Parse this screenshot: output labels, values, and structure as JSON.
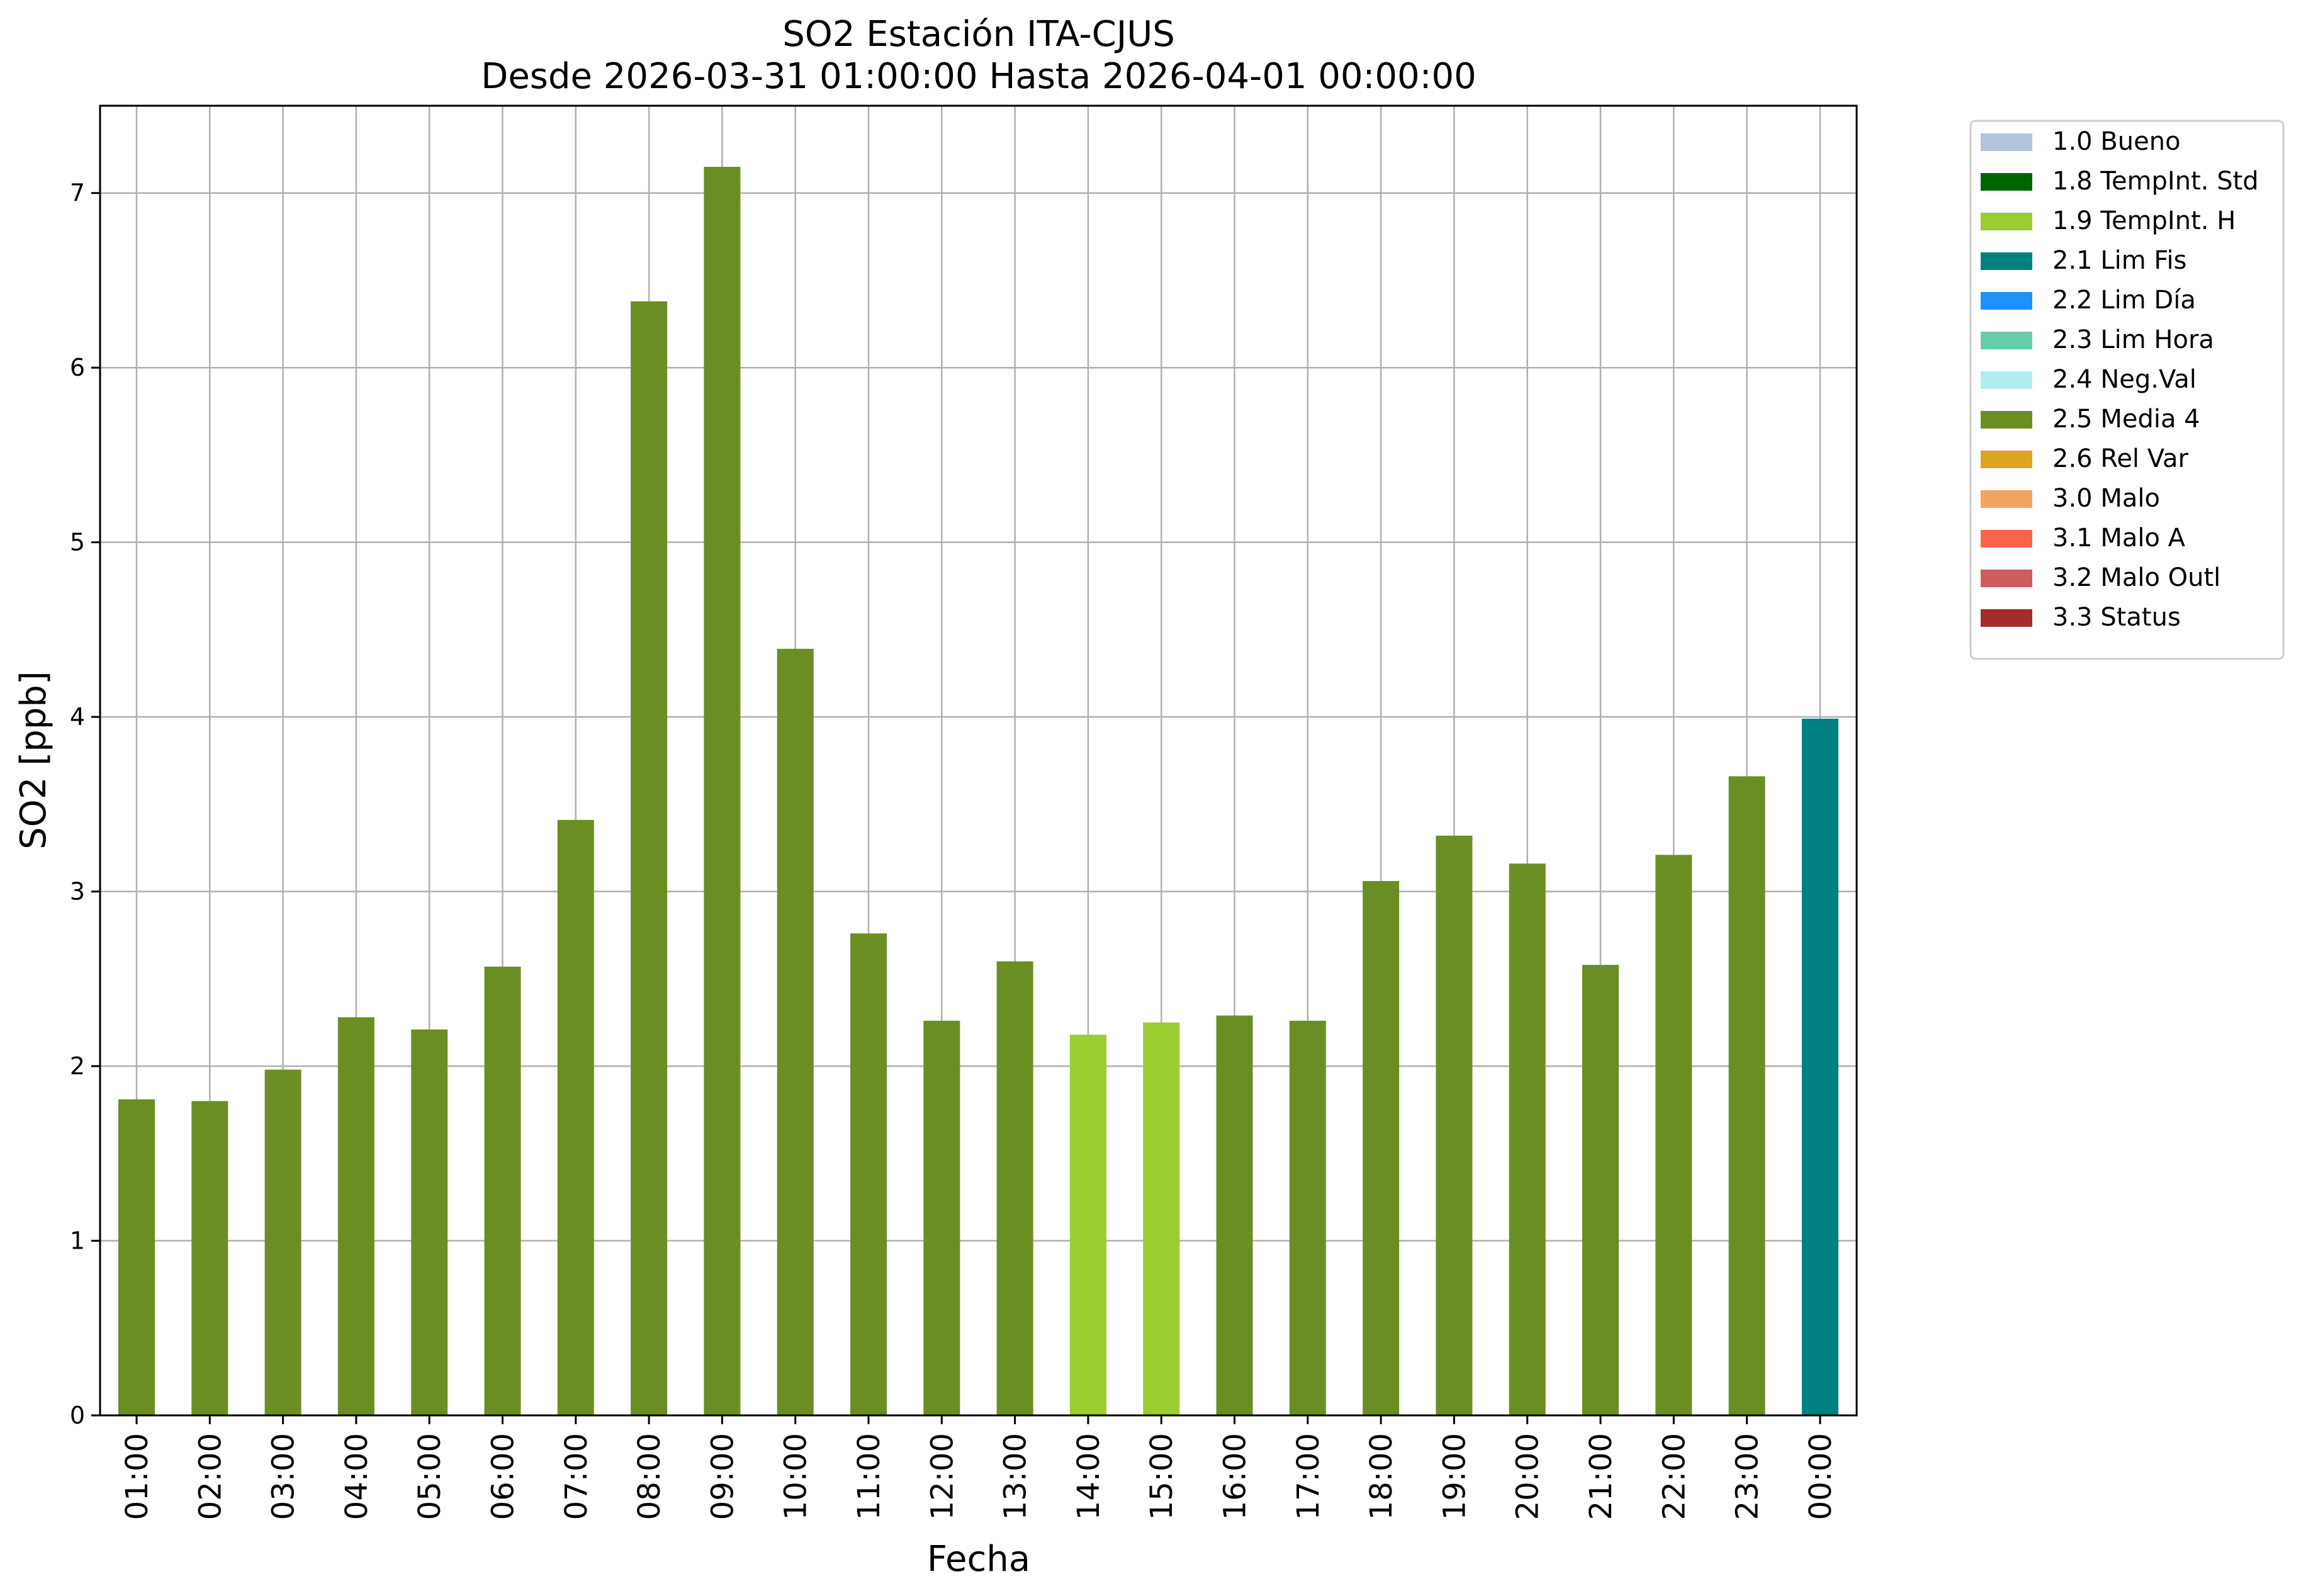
{
  "chart_data": {
    "type": "bar",
    "title_line1": "SO2 Estación ITA-CJUS",
    "title_line2": "Desde 2026-03-31 01:00:00 Hasta 2026-04-01 00:00:00",
    "xlabel": "Fecha",
    "ylabel": "SO2 [ppb]",
    "ylim": [
      0,
      7.5
    ],
    "yticks": [
      "0",
      "1",
      "2",
      "3",
      "4",
      "5",
      "6",
      "7"
    ],
    "grid": true,
    "legend_position": "outside-right",
    "categories": [
      "01:00",
      "02:00",
      "03:00",
      "04:00",
      "05:00",
      "06:00",
      "07:00",
      "08:00",
      "09:00",
      "10:00",
      "11:00",
      "12:00",
      "13:00",
      "14:00",
      "15:00",
      "16:00",
      "17:00",
      "18:00",
      "19:00",
      "20:00",
      "21:00",
      "22:00",
      "23:00",
      "00:00"
    ],
    "values": [
      1.81,
      1.8,
      1.98,
      2.28,
      2.21,
      2.57,
      3.41,
      6.38,
      7.15,
      4.39,
      2.76,
      2.26,
      2.6,
      2.18,
      2.25,
      2.29,
      2.26,
      3.06,
      3.32,
      3.16,
      2.58,
      3.21,
      3.66,
      3.99
    ],
    "flags": [
      "2.5 Media 4",
      "2.5 Media 4",
      "2.5 Media 4",
      "2.5 Media 4",
      "2.5 Media 4",
      "2.5 Media 4",
      "2.5 Media 4",
      "2.5 Media 4",
      "2.5 Media 4",
      "2.5 Media 4",
      "2.5 Media 4",
      "2.5 Media 4",
      "2.5 Media 4",
      "1.9 TempInt. H",
      "1.9 TempInt. H",
      "2.5 Media 4",
      "2.5 Media 4",
      "2.5 Media 4",
      "2.5 Media 4",
      "2.5 Media 4",
      "2.5 Media 4",
      "2.5 Media 4",
      "2.5 Media 4",
      "2.1 Lim Fis"
    ],
    "legend": [
      {
        "label": "1.0 Bueno",
        "color": "#b0c4de"
      },
      {
        "label": "1.8 TempInt. Std",
        "color": "#006400"
      },
      {
        "label": "1.9 TempInt. H",
        "color": "#9acd32"
      },
      {
        "label": "2.1 Lim Fis",
        "color": "#008080"
      },
      {
        "label": "2.2 Lim Día",
        "color": "#1e90ff"
      },
      {
        "label": "2.3 Lim Hora",
        "color": "#66cdaa"
      },
      {
        "label": "2.4 Neg.Val",
        "color": "#afeeee"
      },
      {
        "label": "2.5 Media 4",
        "color": "#6b8e23"
      },
      {
        "label": "2.6 Rel Var",
        "color": "#daa520"
      },
      {
        "label": "3.0 Malo",
        "color": "#f4a460"
      },
      {
        "label": "3.1 Malo A",
        "color": "#ff6347"
      },
      {
        "label": "3.2 Malo Outl",
        "color": "#cd5c5c"
      },
      {
        "label": "3.3 Status",
        "color": "#a52a2a"
      }
    ]
  }
}
